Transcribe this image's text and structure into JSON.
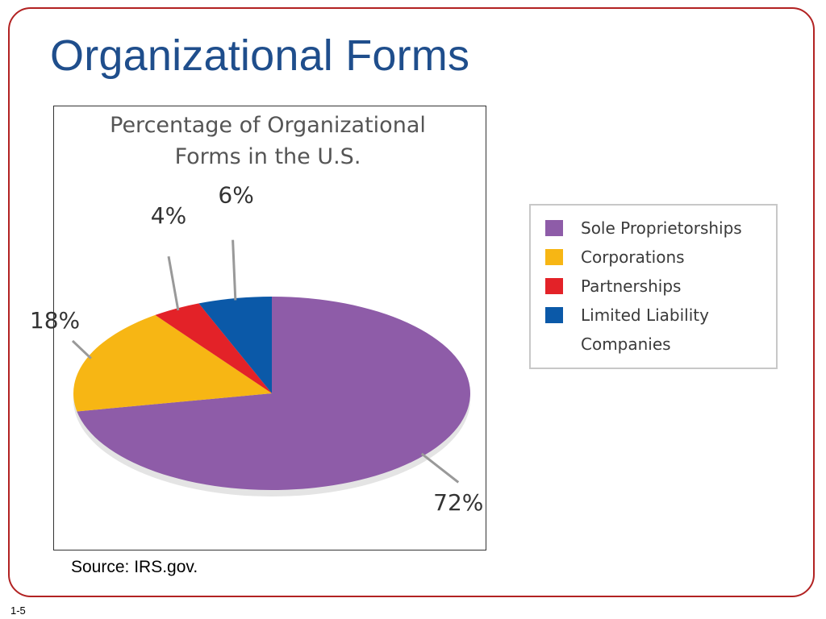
{
  "slide": {
    "title": "Organizational Forms",
    "source": "Source:  IRS.gov.",
    "number": "1-5"
  },
  "chart_data": {
    "type": "pie",
    "title_lines": [
      "Percentage of Organizational",
      "Forms in the U.S."
    ],
    "series": [
      {
        "name": "Sole Proprietorships",
        "value": 72,
        "label": "72%",
        "color": "#8e5ca8"
      },
      {
        "name": "Corporations",
        "value": 18,
        "label": "18%",
        "color": "#f7b614"
      },
      {
        "name": "Partnerships",
        "value": 4,
        "label": "4%",
        "color": "#e32228"
      },
      {
        "name": "Limited Liability Companies",
        "value": 6,
        "label": "6%",
        "color": "#0b59a8"
      }
    ],
    "legend": {
      "placement": "right",
      "items": [
        {
          "label": "Sole Proprietorships",
          "color": "#8e5ca8"
        },
        {
          "label": "Corporations",
          "color": "#f7b614"
        },
        {
          "label": "Partnerships",
          "color": "#e32228"
        },
        {
          "label": "Limited Liability",
          "color": "#0b59a8"
        },
        {
          "label": "Companies",
          "color": null
        }
      ]
    }
  }
}
